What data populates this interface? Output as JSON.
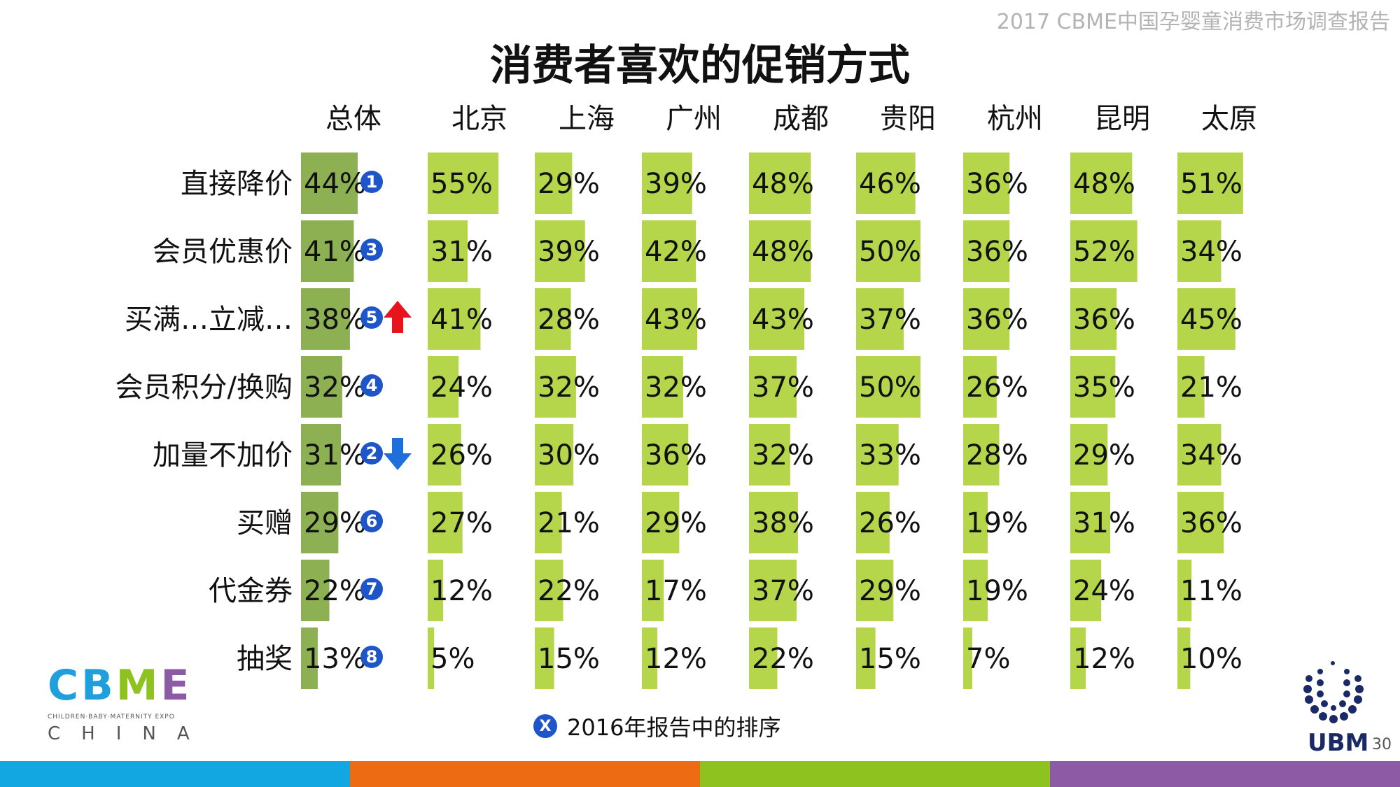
{
  "header_note": "2017 CBME中国孕婴童消费市场调查报告",
  "title": "消费者喜欢的促销方式",
  "legend": {
    "badge": "X",
    "text": "2016年报告中的排序"
  },
  "colors": {
    "total_bar": "#8db052",
    "city_bar": "#b5d64a",
    "rank_badge": "#1e55c8",
    "arrow_up": "#e8141c",
    "arrow_down": "#1e6fd9",
    "stripes": [
      "#12a7e0",
      "#ed6b12",
      "#8dc21f",
      "#8d5aa6"
    ]
  },
  "logo": {
    "letters": [
      "C",
      "B",
      "M",
      "E"
    ],
    "letter_colors": [
      "#1fa0dc",
      "#1fa0dc",
      "#8dc21f",
      "#8d5aa6"
    ],
    "subtitle": "CHILDREN·BABY·MATERNITY EXPO",
    "china": "CHINA"
  },
  "ubm": {
    "name": "UBM",
    "page": "30"
  },
  "chart_data": {
    "type": "table",
    "title": "消费者喜欢的促销方式",
    "unit": "%",
    "columns": [
      "总体",
      "北京",
      "上海",
      "广州",
      "成都",
      "贵阳",
      "杭州",
      "昆明",
      "太原"
    ],
    "rows": [
      {
        "label": "直接降价",
        "values": [
          44,
          55,
          29,
          39,
          48,
          46,
          36,
          48,
          51
        ],
        "rank_2016": "1",
        "trend": ""
      },
      {
        "label": "会员优惠价",
        "values": [
          41,
          31,
          39,
          42,
          48,
          50,
          36,
          52,
          34
        ],
        "rank_2016": "3",
        "trend": ""
      },
      {
        "label": "买满…立减…",
        "values": [
          38,
          41,
          28,
          43,
          43,
          37,
          36,
          36,
          45
        ],
        "rank_2016": "5",
        "trend": "up"
      },
      {
        "label": "会员积分/换购",
        "values": [
          32,
          24,
          32,
          32,
          37,
          50,
          26,
          35,
          21
        ],
        "rank_2016": "4",
        "trend": ""
      },
      {
        "label": "加量不加价",
        "values": [
          31,
          26,
          30,
          36,
          32,
          33,
          28,
          29,
          34
        ],
        "rank_2016": "2",
        "trend": "down"
      },
      {
        "label": "买赠",
        "values": [
          29,
          27,
          21,
          29,
          38,
          26,
          19,
          31,
          36
        ],
        "rank_2016": "6",
        "trend": ""
      },
      {
        "label": "代金券",
        "values": [
          22,
          12,
          22,
          17,
          37,
          29,
          19,
          24,
          11
        ],
        "rank_2016": "7",
        "trend": ""
      },
      {
        "label": "抽奖",
        "values": [
          13,
          5,
          15,
          12,
          22,
          15,
          7,
          12,
          10
        ],
        "rank_2016": "8",
        "trend": ""
      }
    ]
  }
}
